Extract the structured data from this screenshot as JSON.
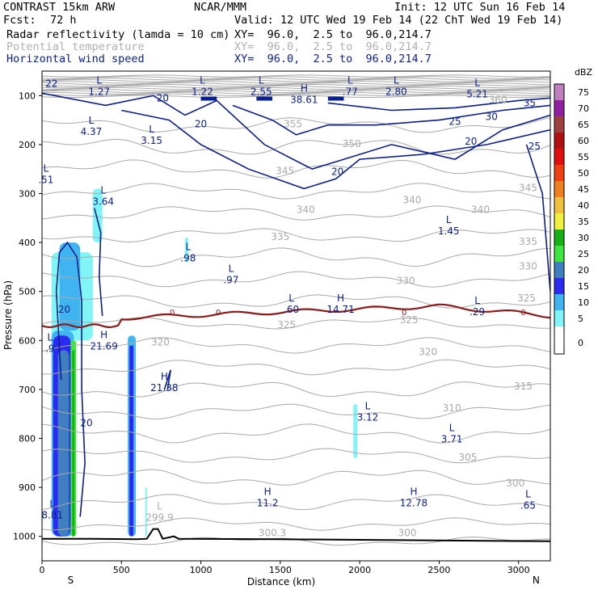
{
  "header": {
    "model": "CONTRAST 15km ARW",
    "org": "NCAR/MMM",
    "init": "Init: 12 UTC Sun 16 Feb 14",
    "fcst_label": "Fcst:",
    "fcst_value": "72 h",
    "valid": "Valid: 12 UTC Wed 19 Feb 14 (22 ChT Wed 19 Feb 14)",
    "field1": "Radar reflectivity (lamda = 10 cm)",
    "field1_xy": "XY=  96.0,  2.5 to  96.0,214.7",
    "field2": "Potential temperature",
    "field2_xy": "XY=  96.0,  2.5 to  96.0,214.7",
    "field3": "Horizontal wind speed",
    "field3_xy": "XY=  96.0,  2.5 to  96.0,214.7"
  },
  "colors": {
    "theta": "#a9a9a9",
    "wind": "#0a1f8f",
    "freezing": "#8b1a1a",
    "terrain": "#000000"
  },
  "chart_data": {
    "type": "cross-section",
    "title": "Radar reflectivity / Potential temperature / Horizontal wind speed",
    "xlabel": "Distance (km)",
    "ylabel": "Pressure (hPa)",
    "xlim": [
      0,
      3200
    ],
    "ylim": [
      1050,
      50
    ],
    "x_ticks": [
      0,
      500,
      1000,
      1500,
      2000,
      2500,
      3000
    ],
    "y_ticks": [
      100,
      200,
      300,
      400,
      500,
      600,
      700,
      800,
      900,
      1000
    ],
    "x_end_labels": {
      "left": "S",
      "right": "N"
    },
    "colorbar": {
      "unit": "dBZ",
      "levels": [
        0,
        5,
        10,
        15,
        20,
        25,
        30,
        35,
        40,
        45,
        50,
        55,
        60,
        65,
        70,
        75
      ],
      "colors": [
        "#ffffff",
        "#7ff5f5",
        "#3fb4f0",
        "#2a2af0",
        "#3f7fbf",
        "#3fe63f",
        "#15b015",
        "#f0f03f",
        "#f0c03f",
        "#f07f1f",
        "#f03f10",
        "#e01010",
        "#b01010",
        "#a03f3f",
        "#9020a0",
        "#c080c0"
      ]
    },
    "theta_contours": [
      {
        "label": "300",
        "x": 2300,
        "p": 1000
      },
      {
        "label": "300.3",
        "x": 1450,
        "p": 1000
      },
      {
        "label": "300",
        "x": 2980,
        "p": 898
      },
      {
        "label": "305",
        "x": 2680,
        "p": 845
      },
      {
        "label": "310",
        "x": 2580,
        "p": 745
      },
      {
        "label": "315",
        "x": 3030,
        "p": 700
      },
      {
        "label": "320",
        "x": 2430,
        "p": 630
      },
      {
        "label": "320",
        "x": 745,
        "p": 610
      },
      {
        "label": "325",
        "x": 1540,
        "p": 575
      },
      {
        "label": "325",
        "x": 2310,
        "p": 565
      },
      {
        "label": "325",
        "x": 3050,
        "p": 520
      },
      {
        "label": "330",
        "x": 2290,
        "p": 485
      },
      {
        "label": "330",
        "x": 3060,
        "p": 455
      },
      {
        "label": "335",
        "x": 1500,
        "p": 395
      },
      {
        "label": "335",
        "x": 3060,
        "p": 405
      },
      {
        "label": "340",
        "x": 1660,
        "p": 340
      },
      {
        "label": "340",
        "x": 2330,
        "p": 320
      },
      {
        "label": "340",
        "x": 2760,
        "p": 340
      },
      {
        "label": "345",
        "x": 3060,
        "p": 295
      },
      {
        "label": "345",
        "x": 1530,
        "p": 260
      },
      {
        "label": "350",
        "x": 1950,
        "p": 205
      },
      {
        "label": "355",
        "x": 1580,
        "p": 165
      },
      {
        "label": "360",
        "x": 2870,
        "p": 115
      }
    ],
    "wind_contours": [
      {
        "label": "20",
        "x": 760,
        "p": 112
      },
      {
        "label": "20",
        "x": 1000,
        "p": 165
      },
      {
        "label": "20",
        "x": 1860,
        "p": 262
      },
      {
        "label": "20",
        "x": 2700,
        "p": 200
      },
      {
        "label": "25",
        "x": 2600,
        "p": 160
      },
      {
        "label": "25",
        "x": 3100,
        "p": 210
      },
      {
        "label": "30",
        "x": 2830,
        "p": 150
      },
      {
        "label": "35",
        "x": 3070,
        "p": 122
      },
      {
        "label": "20",
        "x": 140,
        "p": 543
      },
      {
        "label": "20",
        "x": 280,
        "p": 775
      },
      {
        "label": "22",
        "x": 60,
        "p": 82
      }
    ],
    "pressure_extrema": [
      {
        "type": "L",
        "value": "1.27",
        "x": 360,
        "p": 95
      },
      {
        "type": "L",
        "value": "1.22",
        "x": 1010,
        "p": 95
      },
      {
        "type": "L",
        "value": "2.55",
        "x": 1380,
        "p": 95
      },
      {
        "type": "L",
        "value": ".77",
        "x": 1940,
        "p": 95
      },
      {
        "type": "L",
        "value": "2.80",
        "x": 2230,
        "p": 95
      },
      {
        "type": "L",
        "value": "5.21",
        "x": 2740,
        "p": 100
      },
      {
        "type": "H",
        "value": "38.61",
        "x": 1650,
        "p": 112
      },
      {
        "type": "L",
        "value": "4.37",
        "x": 310,
        "p": 177
      },
      {
        "type": "L",
        "value": "3.15",
        "x": 690,
        "p": 195
      },
      {
        "type": "L",
        "value": ".51",
        "x": 25,
        "p": 275
      },
      {
        "type": "L",
        "value": "3.64",
        "x": 385,
        "p": 320
      },
      {
        "type": "L",
        "value": "1.45",
        "x": 2560,
        "p": 380
      },
      {
        "type": "L",
        "value": ".98",
        "x": 920,
        "p": 435
      },
      {
        "type": "L",
        "value": ".97",
        "x": 1190,
        "p": 480
      },
      {
        "type": "L",
        "value": ".60",
        "x": 1570,
        "p": 540
      },
      {
        "type": "H",
        "value": "14.71",
        "x": 1880,
        "p": 540
      },
      {
        "type": "L",
        "value": ".29",
        "x": 2740,
        "p": 545
      },
      {
        "type": "H",
        "value": "21.69",
        "x": 390,
        "p": 615
      },
      {
        "type": "L",
        "value": ".9",
        "x": 50,
        "p": 620
      },
      {
        "type": "H",
        "value": "21.38",
        "x": 770,
        "p": 700
      },
      {
        "type": "L",
        "value": "3.12",
        "x": 2050,
        "p": 760
      },
      {
        "type": "L",
        "value": "3.71",
        "x": 2580,
        "p": 805
      },
      {
        "type": "H",
        "value": "11.2",
        "x": 1420,
        "p": 935
      },
      {
        "type": "H",
        "value": "12.78",
        "x": 2340,
        "p": 935
      },
      {
        "type": "L",
        "value": ".65",
        "x": 3060,
        "p": 940
      },
      {
        "type": "L",
        "value": "8.81",
        "x": 65,
        "p": 960
      },
      {
        "type": "L",
        "value": "299.9",
        "x": 740,
        "p": 965
      }
    ],
    "freezing_level_label": "0"
  }
}
